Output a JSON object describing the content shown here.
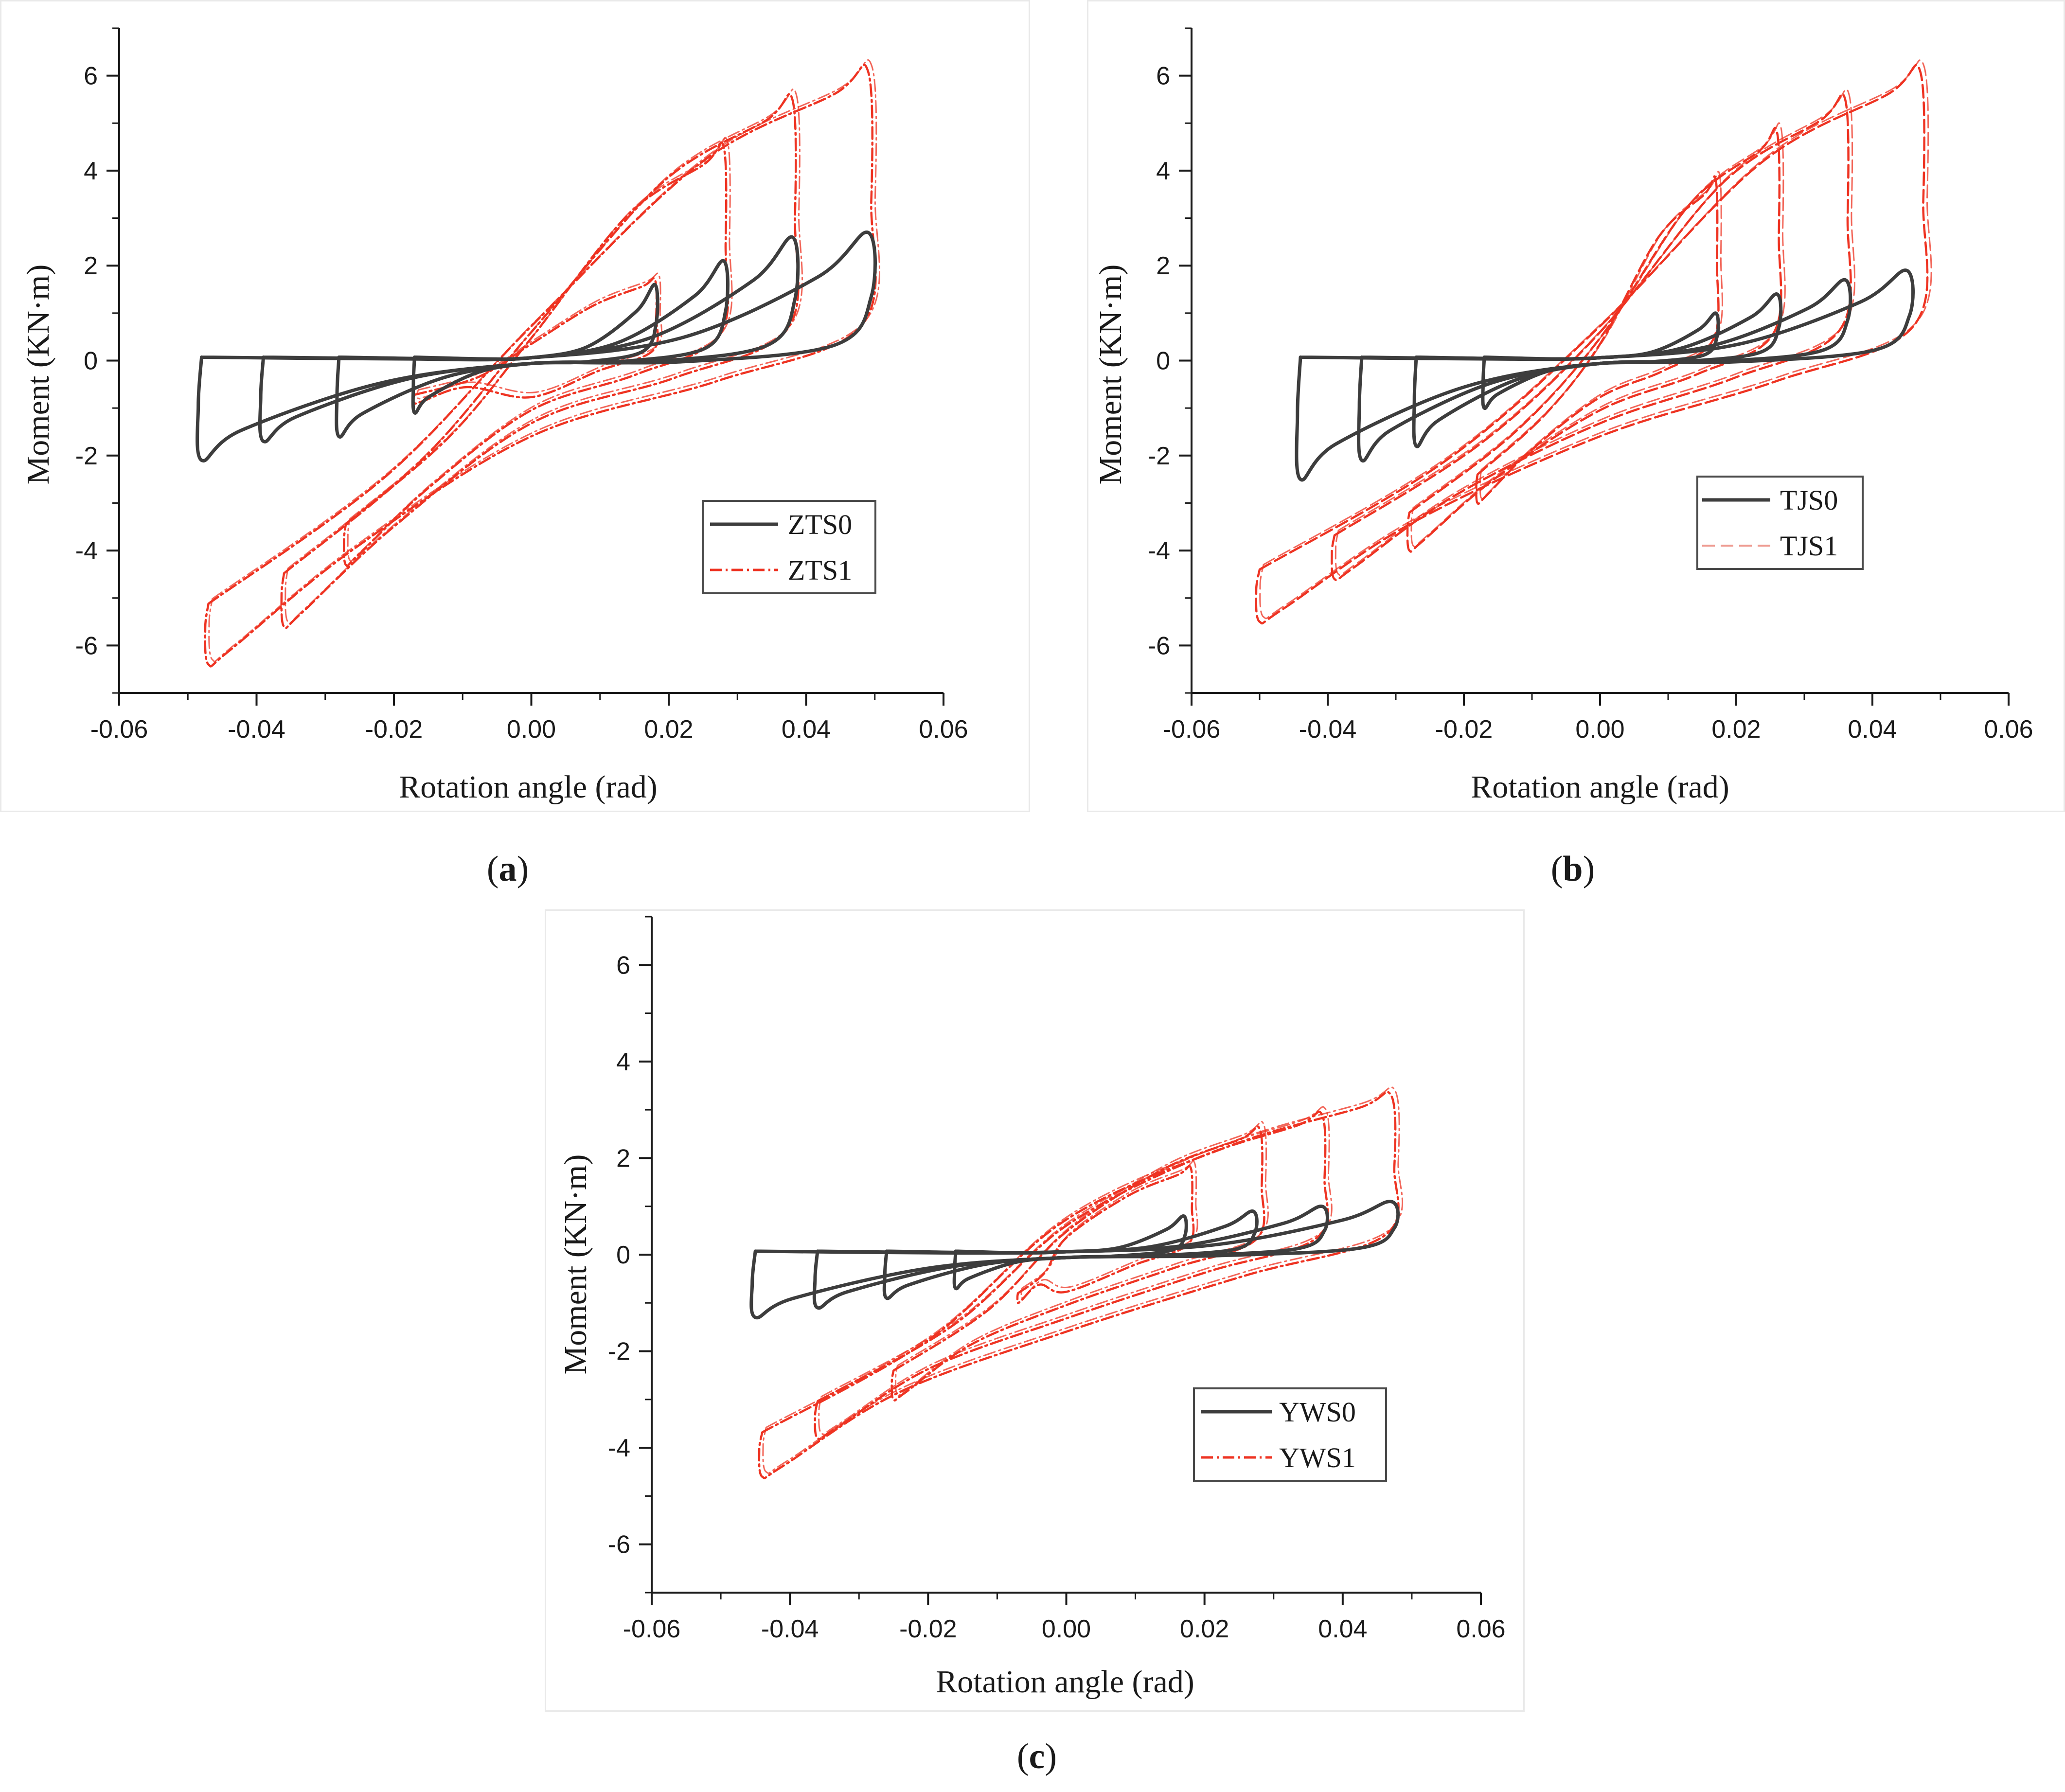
{
  "figure": {
    "colors": {
      "base": "#3d3d3d",
      "strengthened": "#ee3322",
      "axis": "#1a1a1a",
      "legend_border": "#4a4a4a"
    }
  },
  "captions": {
    "a": "a",
    "b": "b",
    "c": "c"
  },
  "chart_data": [
    {
      "id": "a",
      "type": "line",
      "title": "",
      "xlabel": "Rotation angle (rad)",
      "ylabel": "Moment (KN·m)",
      "xlim": [
        -0.06,
        0.06
      ],
      "ylim": [
        -7,
        7
      ],
      "xticks": [
        "-0.06",
        "-0.04",
        "-0.02",
        "0.00",
        "0.02",
        "0.04",
        "0.06"
      ],
      "yticks": [
        "-6",
        "-4",
        "-2",
        "0",
        "2",
        "4",
        "6"
      ],
      "legend_position": "bottom-right",
      "series": [
        {
          "name": "ZTS0",
          "style": "solid",
          "loops": [
            {
              "amp_pos": 0.018,
              "mom_pos": 1.6,
              "amp_neg": -0.017,
              "mom_neg": -1.1
            },
            {
              "amp_pos": 0.028,
              "mom_pos": 2.1,
              "amp_neg": -0.028,
              "mom_neg": -1.6
            },
            {
              "amp_pos": 0.038,
              "mom_pos": 2.6,
              "amp_neg": -0.039,
              "mom_neg": -1.7
            },
            {
              "amp_pos": 0.049,
              "mom_pos": 2.7,
              "amp_neg": -0.048,
              "mom_neg": -2.1
            }
          ]
        },
        {
          "name": "ZTS1",
          "style": "dashdot",
          "loops": [
            {
              "amp_pos": 0.018,
              "mom_pos": 1.7,
              "amp_neg": -0.017,
              "mom_neg": -0.9
            },
            {
              "amp_pos": 0.028,
              "mom_pos": 4.5,
              "amp_neg": -0.027,
              "mom_neg": -4.3
            },
            {
              "amp_pos": 0.038,
              "mom_pos": 5.5,
              "amp_neg": -0.036,
              "mom_neg": -5.6
            },
            {
              "amp_pos": 0.049,
              "mom_pos": 6.1,
              "amp_neg": -0.047,
              "mom_neg": -6.4
            }
          ]
        }
      ]
    },
    {
      "id": "b",
      "type": "line",
      "title": "",
      "xlabel": "Rotation angle (rad)",
      "ylabel": "Moment (KN·m)",
      "xlim": [
        -0.06,
        0.06
      ],
      "ylim": [
        -7,
        7
      ],
      "xticks": [
        "-0.06",
        "-0.04",
        "-0.02",
        "0.00",
        "0.02",
        "0.04",
        "0.06"
      ],
      "yticks": [
        "-6",
        "-4",
        "-2",
        "0",
        "2",
        "4",
        "6"
      ],
      "legend_position": "middle-right",
      "series": [
        {
          "name": "TJS0",
          "style": "solid",
          "loops": [
            {
              "amp_pos": 0.017,
              "mom_pos": 1.0,
              "amp_neg": -0.017,
              "mom_neg": -1.0
            },
            {
              "amp_pos": 0.026,
              "mom_pos": 1.4,
              "amp_neg": -0.027,
              "mom_neg": -1.8
            },
            {
              "amp_pos": 0.036,
              "mom_pos": 1.7,
              "amp_neg": -0.035,
              "mom_neg": -2.1
            },
            {
              "amp_pos": 0.045,
              "mom_pos": 1.9,
              "amp_neg": -0.044,
              "mom_neg": -2.5
            }
          ]
        },
        {
          "name": "TJS1",
          "style": "dashed",
          "loops": [
            {
              "amp_pos": 0.017,
              "mom_pos": 3.8,
              "amp_neg": -0.018,
              "mom_neg": -3.0
            },
            {
              "amp_pos": 0.026,
              "mom_pos": 4.8,
              "amp_neg": -0.028,
              "mom_neg": -4.0
            },
            {
              "amp_pos": 0.036,
              "mom_pos": 5.5,
              "amp_neg": -0.039,
              "mom_neg": -4.6
            },
            {
              "amp_pos": 0.047,
              "mom_pos": 6.1,
              "amp_neg": -0.05,
              "mom_neg": -5.5
            }
          ]
        }
      ]
    },
    {
      "id": "c",
      "type": "line",
      "title": "",
      "xlabel": "Rotation angle (rad)",
      "ylabel": "Moment (KN·m)",
      "xlim": [
        -0.06,
        0.06
      ],
      "ylim": [
        -7,
        7
      ],
      "xticks": [
        "-0.06",
        "-0.04",
        "-0.02",
        "0.00",
        "0.02",
        "0.04",
        "0.06"
      ],
      "yticks": [
        "-6",
        "-4",
        "-2",
        "0",
        "2",
        "4",
        "6"
      ],
      "legend_position": "bottom-right",
      "series": [
        {
          "name": "YWS0",
          "style": "solid",
          "loops": [
            {
              "amp_pos": 0.017,
              "mom_pos": 0.8,
              "amp_neg": -0.016,
              "mom_neg": -0.7
            },
            {
              "amp_pos": 0.027,
              "mom_pos": 0.9,
              "amp_neg": -0.026,
              "mom_neg": -0.9
            },
            {
              "amp_pos": 0.037,
              "mom_pos": 1.0,
              "amp_neg": -0.036,
              "mom_neg": -1.1
            },
            {
              "amp_pos": 0.047,
              "mom_pos": 1.1,
              "amp_neg": -0.045,
              "mom_neg": -1.3
            }
          ]
        },
        {
          "name": "YWS1",
          "style": "dashdot",
          "loops": [
            {
              "amp_pos": 0.018,
              "mom_pos": 1.8,
              "amp_neg": -0.007,
              "mom_neg": -1.0
            },
            {
              "amp_pos": 0.028,
              "mom_pos": 2.6,
              "amp_neg": -0.025,
              "mom_neg": -3.0
            },
            {
              "amp_pos": 0.037,
              "mom_pos": 2.9,
              "amp_neg": -0.036,
              "mom_neg": -3.8
            },
            {
              "amp_pos": 0.047,
              "mom_pos": 3.3,
              "amp_neg": -0.044,
              "mom_neg": -4.6
            }
          ]
        }
      ]
    }
  ]
}
